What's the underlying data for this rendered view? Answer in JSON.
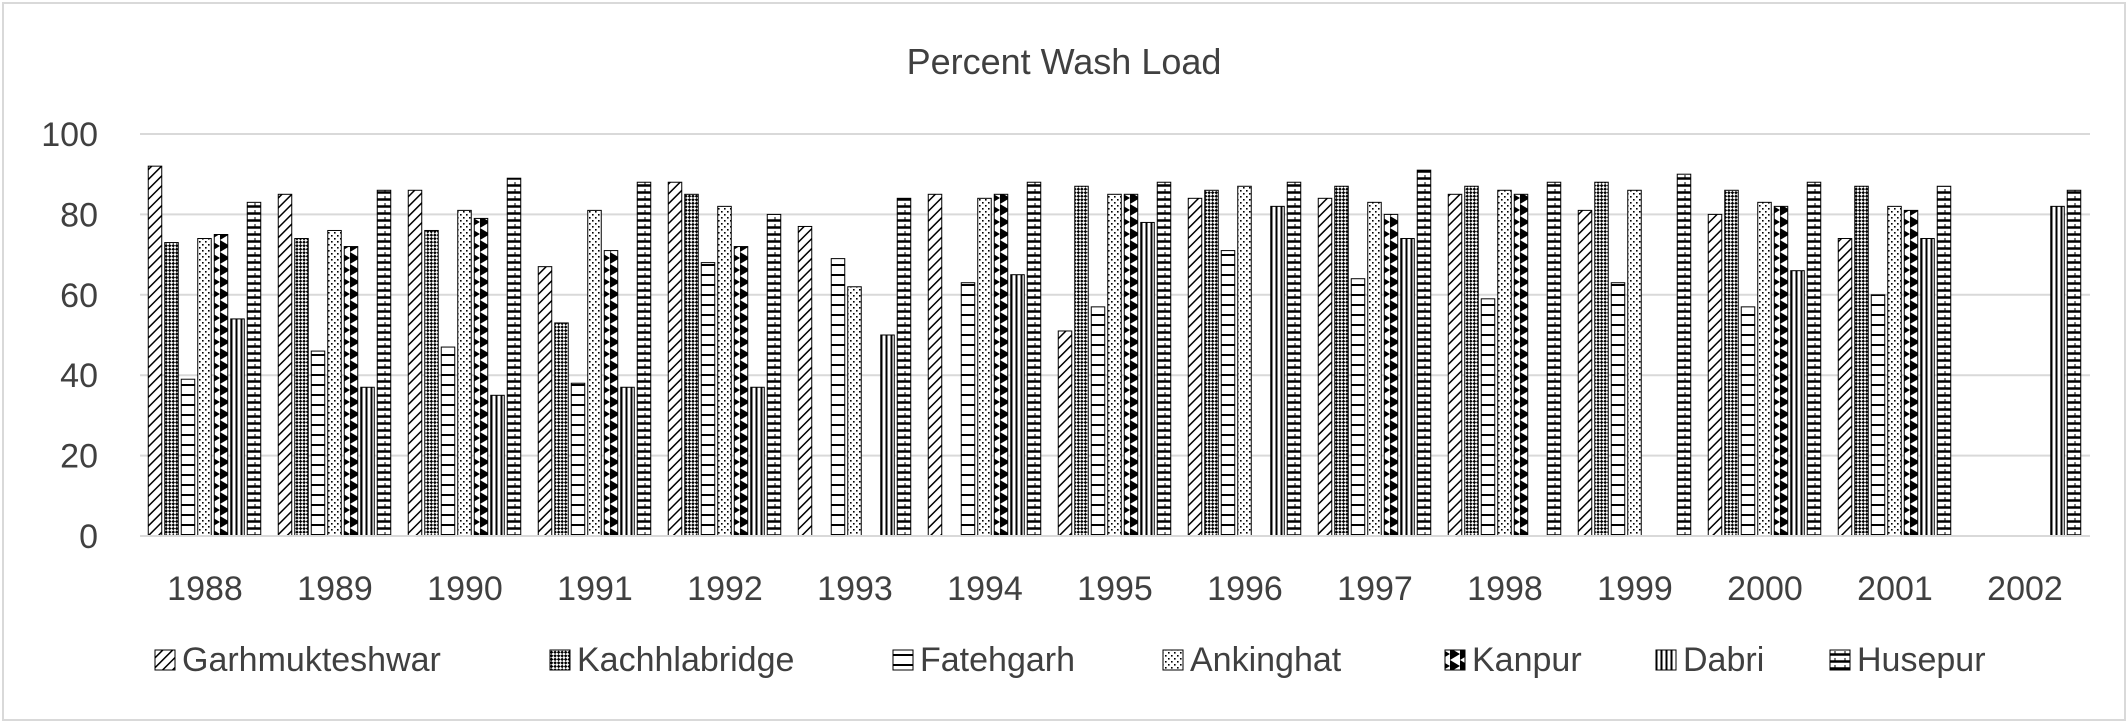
{
  "chart_data": {
    "type": "bar",
    "title": "Percent Wash Load",
    "xlabel": "",
    "ylabel": "",
    "ylim": [
      0,
      100
    ],
    "yticks": [
      0,
      20,
      40,
      60,
      80,
      100
    ],
    "grid": true,
    "legend_position": "bottom",
    "categories": [
      "1988",
      "1989",
      "1990",
      "1991",
      "1992",
      "1993",
      "1994",
      "1995",
      "1996",
      "1997",
      "1998",
      "1999",
      "2000",
      "2001",
      "2002"
    ],
    "series": [
      {
        "name": "Garhmukteshwar",
        "pattern": "diag-right",
        "values": [
          92,
          85,
          86,
          67,
          88,
          77,
          85,
          51,
          84,
          84,
          85,
          81,
          80,
          74,
          null
        ]
      },
      {
        "name": "Kachhlabridge",
        "pattern": "crosshatch",
        "values": [
          73,
          74,
          76,
          53,
          85,
          null,
          null,
          87,
          86,
          87,
          87,
          88,
          86,
          87,
          null
        ]
      },
      {
        "name": "Fatehgarh",
        "pattern": "hlines",
        "values": [
          39,
          46,
          47,
          38,
          68,
          69,
          63,
          57,
          71,
          64,
          59,
          63,
          57,
          60,
          null
        ]
      },
      {
        "name": "Ankinghat",
        "pattern": "dots",
        "values": [
          74,
          76,
          81,
          81,
          82,
          62,
          84,
          85,
          87,
          83,
          86,
          86,
          83,
          82,
          null
        ]
      },
      {
        "name": "Kanpur",
        "pattern": "triangles",
        "values": [
          75,
          72,
          79,
          71,
          72,
          null,
          85,
          85,
          null,
          80,
          85,
          null,
          82,
          81,
          null
        ]
      },
      {
        "name": "Dabri",
        "pattern": "vlines",
        "values": [
          54,
          37,
          35,
          37,
          37,
          50,
          65,
          78,
          82,
          74,
          null,
          null,
          66,
          74,
          82
        ]
      },
      {
        "name": "Husepur",
        "pattern": "hstripes",
        "values": [
          83,
          86,
          89,
          88,
          80,
          84,
          88,
          88,
          88,
          91,
          88,
          90,
          88,
          87,
          86
        ]
      }
    ]
  }
}
